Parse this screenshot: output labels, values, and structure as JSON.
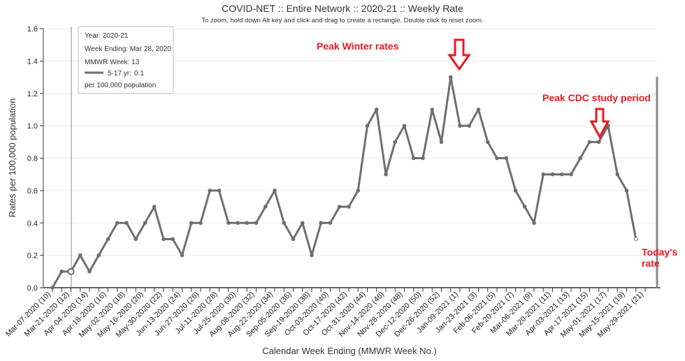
{
  "chart_data": {
    "type": "line",
    "title": "COVID-NET :: Entire Network :: 2020-21 :: Weekly Rate",
    "subtitle": "To zoom, hold down Alt key and click and drag to create a rectangle. Double click to reset zoom.",
    "xlabel": "Calendar Week Ending (MMWR Week No.)",
    "ylabel": "Rates per 100,000 population",
    "ylim": [
      0,
      1.6
    ],
    "yticks": [
      "0.0",
      "0.2",
      "0.4",
      "0.6",
      "0.8",
      "1.0",
      "1.2",
      "1.4",
      "1.6"
    ],
    "grid": "horizontal",
    "line_color": "#6e6e6e",
    "x_ticks": [
      "Mar-07-2020 (10)",
      "Mar-21-2020 (12)",
      "Apr-04-2020 (14)",
      "Apr-18-2020 (16)",
      "May-02-2020 (18)",
      "May-16-2020 (20)",
      "May-30-2020 (22)",
      "Jun-13-2020 (24)",
      "Jun-27-2020 (26)",
      "Jul-11-2020 (28)",
      "Jul-25-2020 (30)",
      "Aug-08-2020 (32)",
      "Aug-22-2020 (34)",
      "Sep-05-2020 (36)",
      "Sep-19-2020 (38)",
      "Oct-03-2020 (40)",
      "Oct-17-2020 (42)",
      "Oct-31-2020 (44)",
      "Nov-14-2020 (46)",
      "Nov-28-2020 (48)",
      "Dec-12-2020 (50)",
      "Dec-26-2020 (52)",
      "Jan-09-2021 (1)",
      "Jan-23-2021 (3)",
      "Feb-06-2021 (5)",
      "Feb-20-2021 (7)",
      "Mar-06-2021 (9)",
      "Mar-20-2021 (11)",
      "Apr-03-2021 (13)",
      "Apr-17-2021 (15)",
      "May-01-2021 (17)",
      "May-15-2021 (19)",
      "May-29-2021 (21)"
    ],
    "series": [
      {
        "values": [
          0,
          0.1,
          0.1,
          0.2,
          0.1,
          0.2,
          0.3,
          0.4,
          0.4,
          0.3,
          0.4,
          0.5,
          0.3,
          0.3,
          0.2,
          0.4,
          0.4,
          0.6,
          0.6,
          0.4,
          0.4,
          0.4,
          0.4,
          0.5,
          0.6,
          0.4,
          0.3,
          0.4,
          0.2,
          0.4,
          0.4,
          0.5,
          0.5,
          0.6,
          1.0,
          1.1,
          0.7,
          0.9,
          1.0,
          0.8,
          0.8,
          1.1,
          0.9,
          1.3,
          1.0,
          1.0,
          1.1,
          0.9,
          0.8,
          0.8,
          0.6,
          0.5,
          0.4,
          0.7,
          0.7,
          0.7,
          0.7,
          0.8,
          0.9,
          0.9,
          1.0,
          0.7,
          0.6,
          0.3
        ]
      }
    ],
    "annotations": {
      "peak_winter": "Peak Winter rates",
      "peak_cdc": "Peak CDC study period",
      "today_1": "Today's",
      "today_2": "rate",
      "color": "#e8191f"
    },
    "tooltip": {
      "year": "Year: 2020-21",
      "week_ending": "Week Ending: Mar 28, 2020",
      "mmwr_week": "MMWR Week: 13",
      "series_label": "5-17 yr:",
      "value": "0.1",
      "unit": "per 100,000 population"
    }
  }
}
